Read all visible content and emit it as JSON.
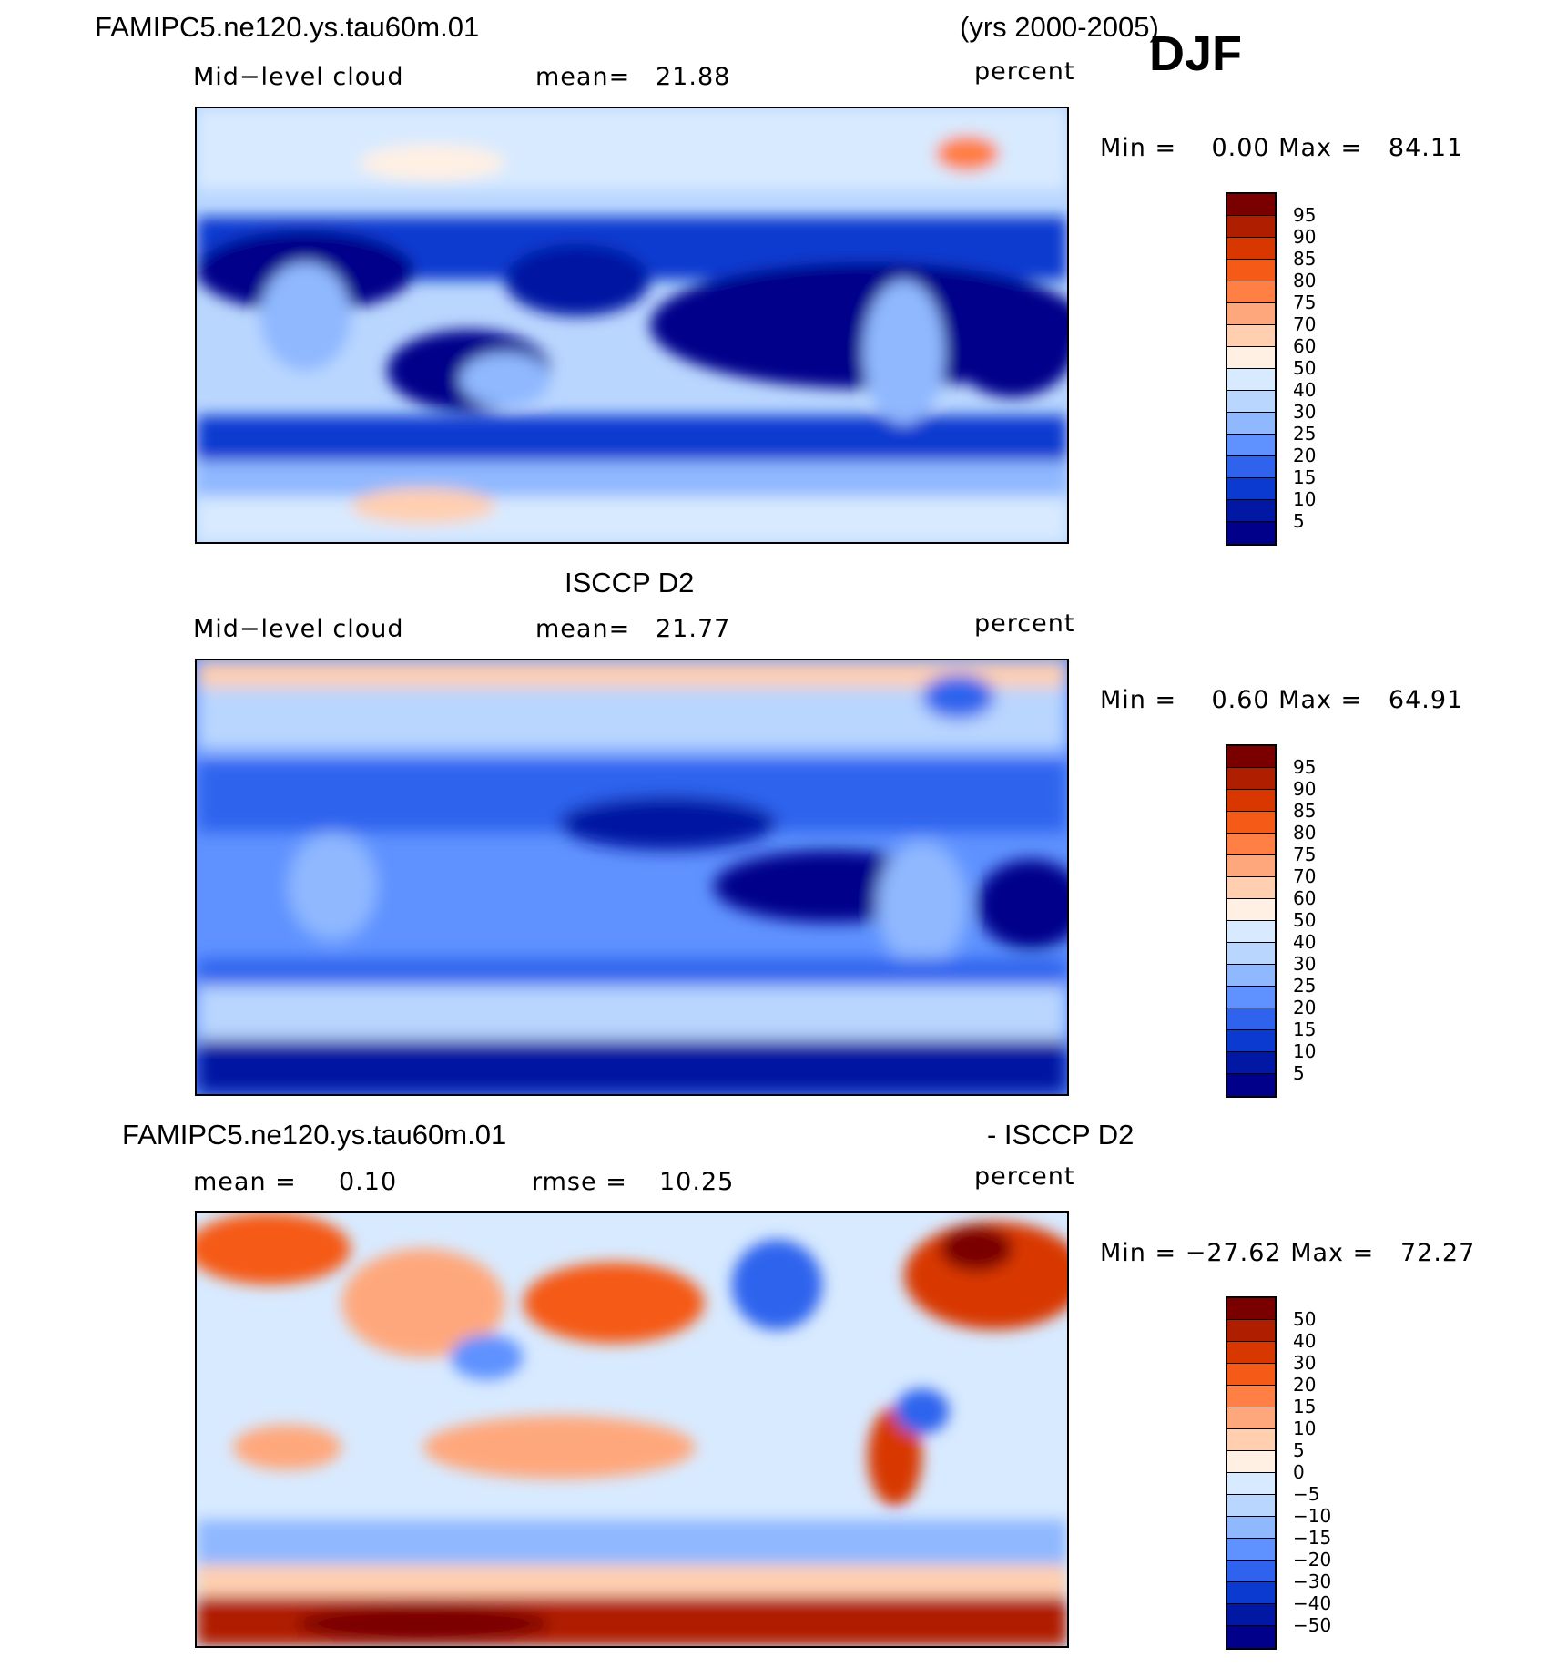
{
  "header": {
    "case_name": "FAMIPC5.ne120.ys.tau60m.01",
    "years": "(yrs 2000-2005)",
    "season": "DJF"
  },
  "panels": [
    {
      "title_left": "",
      "title_right": "",
      "variable": "Mid−level cloud",
      "stat_label": "mean=",
      "stat_value": "21.88",
      "stat2_label": "",
      "stat2_value": "",
      "units": "percent",
      "minmax": "Min =    0.00 Max =   84.11",
      "colorbar": {
        "labels": [
          "95",
          "90",
          "85",
          "80",
          "75",
          "70",
          "60",
          "50",
          "40",
          "30",
          "25",
          "20",
          "15",
          "10",
          "5"
        ],
        "colors": [
          "#7a0000",
          "#b01e00",
          "#d83800",
          "#f55a16",
          "#ff7f45",
          "#ffa77c",
          "#ffcfb0",
          "#fff0e3",
          "#d8eaff",
          "#b9d6ff",
          "#8fb8ff",
          "#5f92ff",
          "#2f63ee",
          "#0a3ad0",
          "#0018a3",
          "#00008a"
        ]
      }
    },
    {
      "title_left": "ISCCP D2",
      "title_right": "",
      "variable": "Mid−level cloud",
      "stat_label": "mean=",
      "stat_value": "21.77",
      "stat2_label": "",
      "stat2_value": "",
      "units": "percent",
      "minmax": "Min =    0.60 Max =   64.91",
      "colorbar": {
        "labels": [
          "95",
          "90",
          "85",
          "80",
          "75",
          "70",
          "60",
          "50",
          "40",
          "30",
          "25",
          "20",
          "15",
          "10",
          "5"
        ],
        "colors": [
          "#7a0000",
          "#b01e00",
          "#d83800",
          "#f55a16",
          "#ff7f45",
          "#ffa77c",
          "#ffcfb0",
          "#fff0e3",
          "#d8eaff",
          "#b9d6ff",
          "#8fb8ff",
          "#5f92ff",
          "#2f63ee",
          "#0a3ad0",
          "#0018a3",
          "#00008a"
        ]
      }
    },
    {
      "title_left": "FAMIPC5.ne120.ys.tau60m.01",
      "title_right": "- ISCCP D2",
      "variable": "",
      "stat_label": "mean =",
      "stat_value": "0.10",
      "stat2_label": "rmse =",
      "stat2_value": "10.25",
      "units": "percent",
      "minmax": "Min = −27.62 Max =   72.27",
      "colorbar": {
        "labels": [
          "50",
          "40",
          "30",
          "20",
          "15",
          "10",
          "5",
          "0",
          "−5",
          "−10",
          "−15",
          "−20",
          "−30",
          "−40",
          "−50"
        ],
        "colors": [
          "#7a0000",
          "#b01e00",
          "#d83800",
          "#f55a16",
          "#ff7f45",
          "#ffa77c",
          "#ffcfb0",
          "#fff0e3",
          "#d8eaff",
          "#b9d6ff",
          "#8fb8ff",
          "#5f92ff",
          "#2f63ee",
          "#0a3ad0",
          "#0018a3",
          "#00008a"
        ]
      }
    }
  ]
}
